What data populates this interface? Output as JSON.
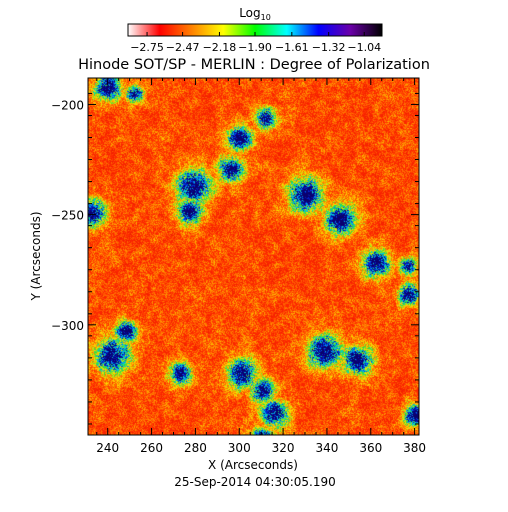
{
  "chart_data": {
    "type": "heatmap",
    "title": "Hinode SOT/SP - MERLIN : Degree of Polarization",
    "xlabel": "X (Arcseconds)",
    "ylabel": "Y (Arcseconds)",
    "xlim": [
      231,
      382
    ],
    "ylim": [
      -350,
      -188
    ],
    "xticks": [
      240,
      260,
      280,
      300,
      320,
      340,
      360,
      380
    ],
    "yticks": [
      -200,
      -250,
      -300
    ],
    "xtick_labels": [
      "240",
      "260",
      "280",
      "300",
      "320",
      "340",
      "360",
      "380"
    ],
    "ytick_labels": [
      "−200",
      "−250",
      "−300"
    ],
    "timestamp": "25-Sep-2014 04:30:05.190",
    "colorbar": {
      "label_base": "Log",
      "label_sub": "10",
      "range": [
        -2.9,
        -0.9
      ],
      "ticks": [
        -2.75,
        -2.47,
        -2.18,
        -1.9,
        -1.61,
        -1.32,
        -1.04
      ],
      "tick_labels": [
        "−2.75",
        "−2.47",
        "−2.18",
        "−1.90",
        "−1.61",
        "−1.32",
        "−1.04"
      ],
      "colormap": [
        "#ffffff",
        "#ff0000",
        "#ff8000",
        "#ffff00",
        "#00ff00",
        "#00ffff",
        "#0000ff",
        "#6a00a8",
        "#000000"
      ]
    },
    "dominant_value": -2.75,
    "high_polarization_regions": [
      {
        "x": 240,
        "y": -192
      },
      {
        "x": 252,
        "y": -195
      },
      {
        "x": 233,
        "y": -249
      },
      {
        "x": 277,
        "y": -248
      },
      {
        "x": 279,
        "y": -237
      },
      {
        "x": 296,
        "y": -229
      },
      {
        "x": 300,
        "y": -215
      },
      {
        "x": 312,
        "y": -206
      },
      {
        "x": 330,
        "y": -241
      },
      {
        "x": 346,
        "y": -252
      },
      {
        "x": 362,
        "y": -272
      },
      {
        "x": 377,
        "y": -273
      },
      {
        "x": 377,
        "y": -286
      },
      {
        "x": 248,
        "y": -303
      },
      {
        "x": 242,
        "y": -314
      },
      {
        "x": 273,
        "y": -322
      },
      {
        "x": 301,
        "y": -322
      },
      {
        "x": 311,
        "y": -330
      },
      {
        "x": 316,
        "y": -340
      },
      {
        "x": 339,
        "y": -312
      },
      {
        "x": 354,
        "y": -316
      },
      {
        "x": 380,
        "y": -341
      },
      {
        "x": 310,
        "y": -352
      }
    ]
  }
}
